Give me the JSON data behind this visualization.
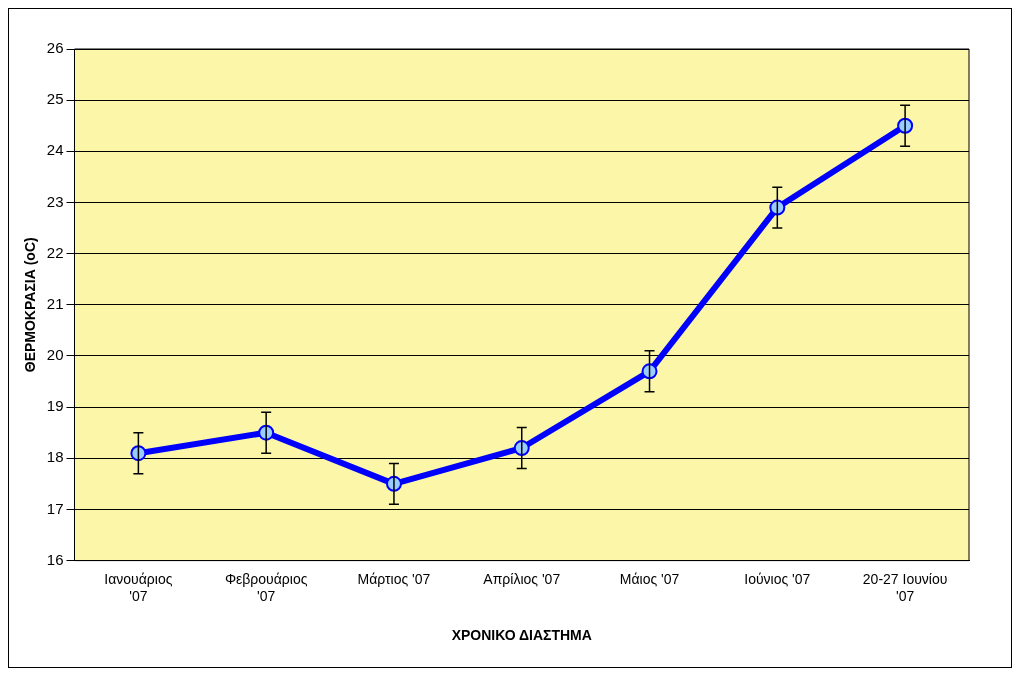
{
  "chart_data": {
    "type": "line",
    "xlabel": "ΧΡΟΝΙΚΟ ΔΙΑΣΤΗΜΑ",
    "ylabel": "ΘΕΡΜΟΚΡΑΣΙΑ (oC)",
    "categories": [
      "Ιανουάριος '07",
      "Φεβρουάριος '07",
      "Μάρτιος '07",
      "Απρίλιος '07",
      "Μάιος '07",
      "Ιούνιος '07",
      "20-27 Ιουνίου '07"
    ],
    "series": [
      {
        "color": "#0000ff",
        "values": [
          18.1,
          18.5,
          17.5,
          18.2,
          19.7,
          22.9,
          24.5
        ],
        "errors": [
          0.4,
          0.4,
          0.4,
          0.4,
          0.4,
          0.4,
          0.4
        ]
      }
    ],
    "ylim": [
      16,
      26
    ],
    "yticks": [
      16,
      17,
      18,
      19,
      20,
      21,
      22,
      23,
      24,
      25,
      26
    ],
    "grid": "y",
    "legend": false,
    "marker": "circle",
    "line_style": "solid"
  }
}
